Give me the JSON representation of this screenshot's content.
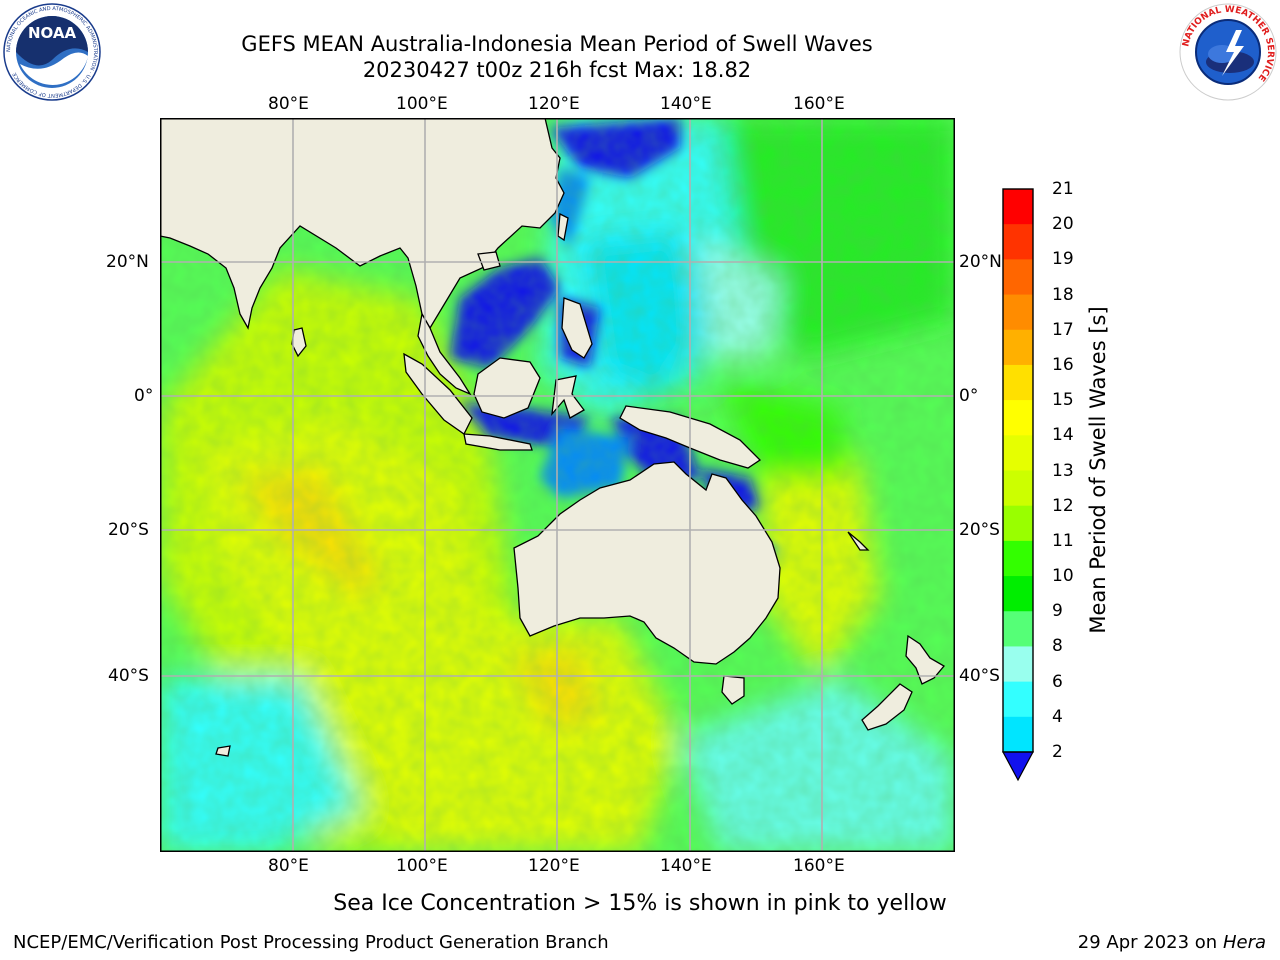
{
  "header": {
    "title_line1": "GEFS MEAN Australia-Indonesia Mean Period of Swell Waves",
    "title_line2": "20230427 t00z 216h fcst   Max: 18.82"
  },
  "logos": {
    "noaa_text": "NOAA",
    "noaa_ring": "NATIONAL OCEANIC AND ATMOSPHERIC ADMINISTRATION · U.S. DEPARTMENT OF COMMERCE",
    "nws_ring": "NATIONAL WEATHER SERVICE"
  },
  "map": {
    "lon_labels": [
      "80°E",
      "100°E",
      "120°E",
      "140°E",
      "160°E"
    ],
    "lat_labels": [
      "20°N",
      "0°",
      "20°S",
      "40°S"
    ]
  },
  "colorbar": {
    "label": "Mean Period of Swell Waves [s]",
    "ticks": [
      "21",
      "20",
      "19",
      "18",
      "17",
      "16",
      "15",
      "14",
      "13",
      "12",
      "11",
      "10",
      "9",
      "8",
      "6",
      "4",
      "2"
    ],
    "colors": [
      "#ff0000",
      "#ff3300",
      "#ff6600",
      "#ff8c00",
      "#ffb000",
      "#ffe000",
      "#ffff00",
      "#e6ff00",
      "#ccff00",
      "#99ff00",
      "#33ff00",
      "#00ee00",
      "#55ff77",
      "#99ffee",
      "#33ffff",
      "#00e5ff",
      "#0088ff",
      "#1111ee"
    ]
  },
  "note": "Sea Ice Concentration > 15% is shown in pink to yellow",
  "footer": {
    "left": "NCEP/EMC/Verification Post Processing Product Generation Branch",
    "date": "29 Apr 2023 on ",
    "host": "Hera"
  }
}
